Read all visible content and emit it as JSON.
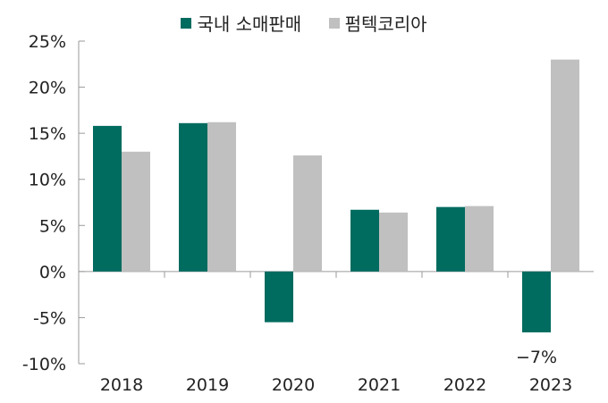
{
  "chart_data": {
    "type": "bar",
    "categories": [
      "2018",
      "2019",
      "2020",
      "2021",
      "2022",
      "2023"
    ],
    "series": [
      {
        "name": "국내 소매판매",
        "color": "#006b5f",
        "values": [
          15.8,
          16.1,
          -5.5,
          6.7,
          7.0,
          -6.6
        ]
      },
      {
        "name": "펌텍코리아",
        "color": "#c0c0c0",
        "values": [
          13.0,
          16.2,
          12.6,
          6.4,
          7.1,
          23.0
        ]
      }
    ],
    "ylim": [
      -10,
      25
    ],
    "yticks": [
      "-10%",
      "-5%",
      "0%",
      "5%",
      "10%",
      "15%",
      "20%",
      "25%"
    ],
    "ytick_values": [
      -10,
      -5,
      0,
      5,
      10,
      15,
      20,
      25
    ],
    "annotations": [
      {
        "text": "−7%",
        "category": "2023",
        "series": 0
      }
    ],
    "legend_position": "top",
    "grid": false,
    "title": "",
    "xlabel": "",
    "ylabel": ""
  }
}
